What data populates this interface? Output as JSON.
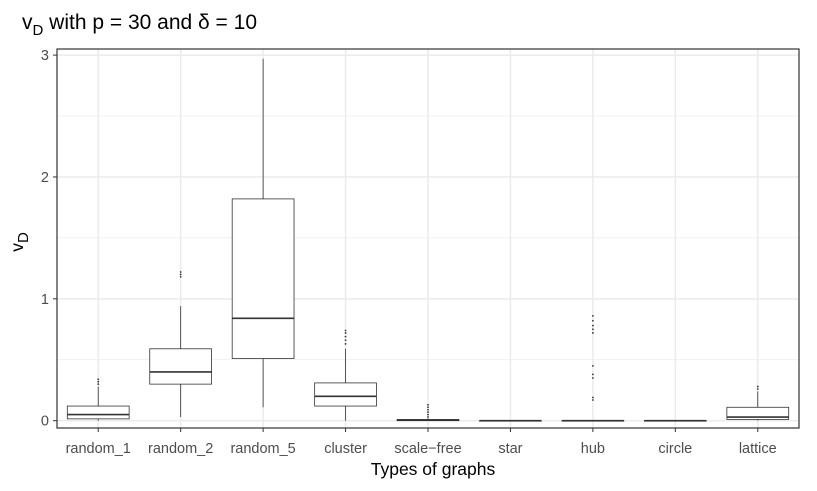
{
  "chart_data": {
    "type": "boxplot",
    "title": {
      "main": "v",
      "subscript": "D",
      "rest": " with p = 30 and δ = 10"
    },
    "xlabel": "Types of graphs",
    "ylabel": {
      "main": "v",
      "subscript": "D"
    },
    "ylim": [
      -0.06,
      3.05
    ],
    "yticks": [
      "0",
      "1",
      "2",
      "3"
    ],
    "grid": true,
    "categories": [
      "random_1",
      "random_2",
      "random_5",
      "cluster",
      "scale−free",
      "star",
      "hub",
      "circle",
      "lattice"
    ],
    "boxes": [
      {
        "category": "random_1",
        "min": 0.0,
        "q1": 0.015,
        "median": 0.05,
        "q3": 0.12,
        "max": 0.28,
        "outliers": [
          0.3,
          0.32,
          0.34
        ]
      },
      {
        "category": "random_2",
        "min": 0.03,
        "q1": 0.3,
        "median": 0.4,
        "q3": 0.59,
        "max": 0.94,
        "outliers": [
          1.18,
          1.2,
          1.22
        ]
      },
      {
        "category": "random_5",
        "min": 0.11,
        "q1": 0.51,
        "median": 0.84,
        "q3": 1.82,
        "max": 2.97,
        "outliers": []
      },
      {
        "category": "cluster",
        "min": 0.0,
        "q1": 0.12,
        "median": 0.2,
        "q3": 0.31,
        "max": 0.59,
        "outliers": [
          0.63,
          0.66,
          0.69,
          0.72,
          0.74
        ]
      },
      {
        "category": "scale−free",
        "min": 0.0,
        "q1": 0.0,
        "median": 0.005,
        "q3": 0.01,
        "max": 0.02,
        "outliers": [
          0.03,
          0.05,
          0.07,
          0.09,
          0.11,
          0.13
        ]
      },
      {
        "category": "star",
        "min": 0.0,
        "q1": 0.0,
        "median": 0.0,
        "q3": 0.0,
        "max": 0.0,
        "outliers": []
      },
      {
        "category": "hub",
        "min": 0.0,
        "q1": 0.0,
        "median": 0.0,
        "q3": 0.0,
        "max": 0.0,
        "outliers": [
          0.17,
          0.19,
          0.35,
          0.38,
          0.45,
          0.72,
          0.75,
          0.78,
          0.82,
          0.86
        ]
      },
      {
        "category": "circle",
        "min": 0.0,
        "q1": 0.0,
        "median": 0.0,
        "q3": 0.0,
        "max": 0.0,
        "outliers": []
      },
      {
        "category": "lattice",
        "min": 0.0,
        "q1": 0.01,
        "median": 0.03,
        "q3": 0.11,
        "max": 0.24,
        "outliers": [
          0.26,
          0.28
        ]
      }
    ]
  }
}
